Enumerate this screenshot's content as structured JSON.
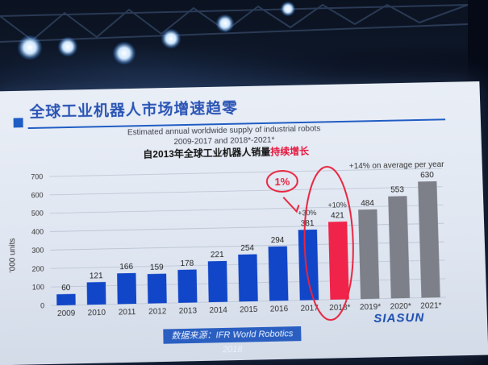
{
  "headline": "全球工业机器人市场增速趋零",
  "source_note": "数据来源：IFR World Robotics 2018",
  "logo_text": "SIASUN",
  "highlight_label": "1%",
  "chart_data": {
    "type": "bar",
    "title": "Estimated annual worldwide supply of industrial robots",
    "subtitle": "2009-2017 and 2018*-2021*",
    "cn_subtitle_main": "自2013年全球工业机器人销量",
    "cn_subtitle_emph": "持续增长",
    "ylabel": "'000 units",
    "ylim": [
      0,
      700
    ],
    "yticks": [
      0,
      100,
      200,
      300,
      400,
      500,
      600,
      700
    ],
    "categories": [
      "2009",
      "2010",
      "2011",
      "2012",
      "2013",
      "2014",
      "2015",
      "2016",
      "2017",
      "2018*",
      "2019*",
      "2020*",
      "2021*"
    ],
    "values": [
      60,
      121,
      166,
      159,
      178,
      221,
      254,
      294,
      381,
      421,
      484,
      553,
      630
    ],
    "bar_colors": [
      "#1146c8",
      "#1146c8",
      "#1146c8",
      "#1146c8",
      "#1146c8",
      "#1146c8",
      "#1146c8",
      "#1146c8",
      "#1146c8",
      "#f0234a",
      "#7d8089",
      "#7d8089",
      "#7d8089"
    ],
    "annotations": [
      {
        "text": "+30%",
        "category": "2017"
      },
      {
        "text": "+10%",
        "category": "2018*"
      },
      {
        "text": "+14% on average per year",
        "category": "2020*"
      }
    ],
    "grid": true
  }
}
